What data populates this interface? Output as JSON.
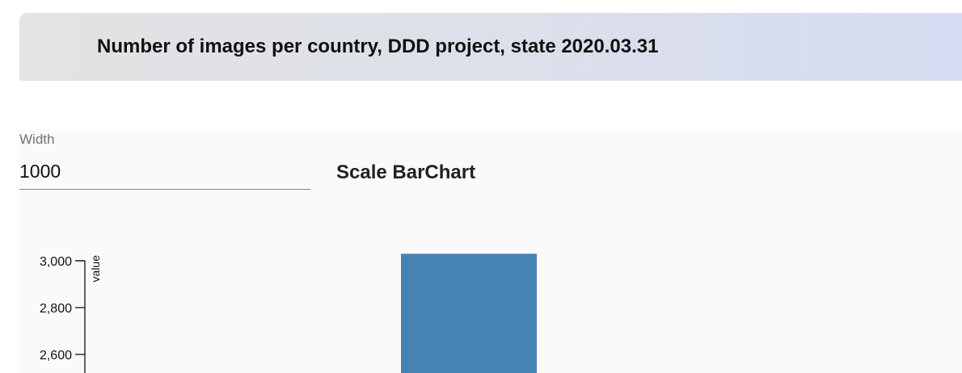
{
  "header": {
    "title": "Number of images per country, DDD project, state 2020.03.31"
  },
  "controls": {
    "width_label": "Width",
    "width_value": "1000"
  },
  "chart_title": "Scale BarChart",
  "chart_data": {
    "type": "bar",
    "title": "Scale BarChart",
    "xlabel": "",
    "ylabel": "value",
    "ylim": [
      2500,
      3000
    ],
    "yticks": [
      3000,
      2800,
      2600
    ],
    "ytick_labels": [
      "3,000",
      "2,800",
      "2,600"
    ],
    "categories": [
      ""
    ],
    "values": [
      3030
    ],
    "colors": {
      "bar": "#4682b4",
      "axis": "#000000"
    }
  }
}
